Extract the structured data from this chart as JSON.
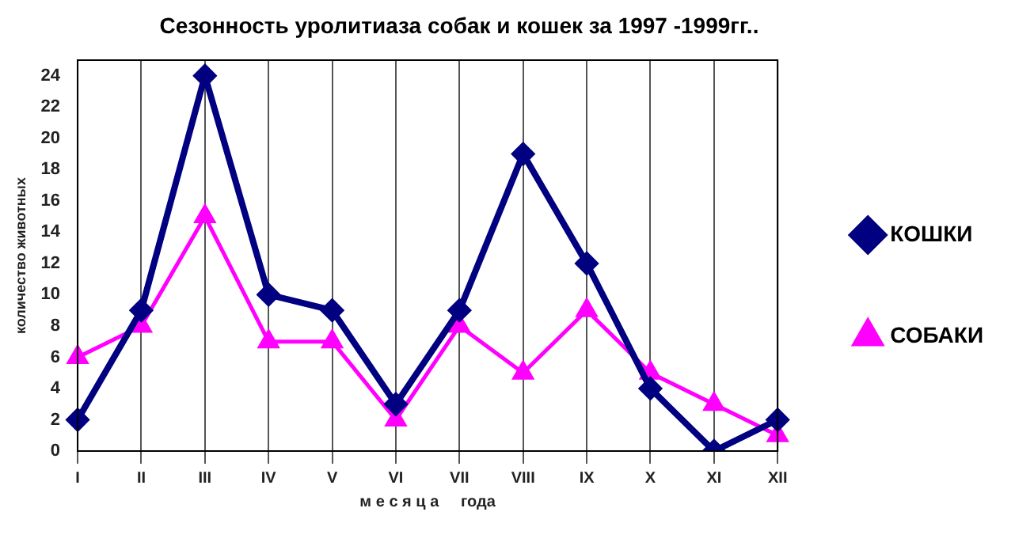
{
  "chart_data": {
    "type": "line",
    "title": "Сезонность уролитиаза собак и кошек за 1997 -1999гг..",
    "xlabel": "м е с я ц а     года",
    "ylabel": "количество животных",
    "categories": [
      "I",
      "II",
      "III",
      "IV",
      "V",
      "VI",
      "VII",
      "VIII",
      "IX",
      "X",
      "XI",
      "XII"
    ],
    "series": [
      {
        "name": "КОШКИ",
        "color": "#000080",
        "marker": "diamond",
        "values": [
          2,
          9,
          24,
          10,
          9,
          3,
          9,
          19,
          12,
          4,
          0,
          2
        ]
      },
      {
        "name": "СОБАКИ",
        "color": "#ff00ff",
        "marker": "triangle",
        "values": [
          6,
          8,
          15,
          7,
          7,
          2,
          8,
          5,
          9,
          5,
          3,
          1
        ]
      }
    ],
    "ylim": [
      0,
      25
    ],
    "yticks": [
      0,
      2,
      4,
      6,
      8,
      10,
      12,
      14,
      16,
      18,
      20,
      22,
      24
    ],
    "grid": "x",
    "legend": "right",
    "line_style": "solid"
  }
}
